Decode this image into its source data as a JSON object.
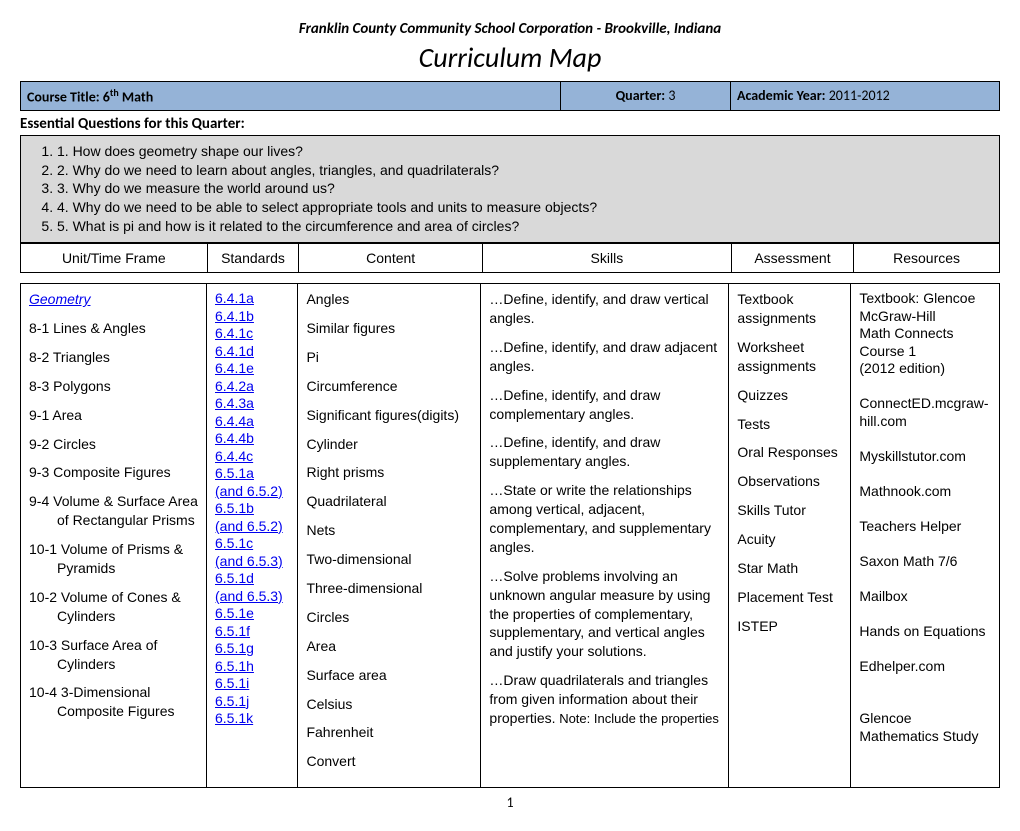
{
  "header": {
    "school": "Franklin County Community School Corporation - Brookville, Indiana",
    "title": "Curriculum Map"
  },
  "info": {
    "course_label": "Course Title:",
    "course_value": "  6",
    "course_suffix": "th",
    "course_subject": "  Math",
    "quarter_label": "Quarter:",
    "quarter_value": "  3",
    "year_label": "Academic Year:",
    "year_value": " 2011-2012"
  },
  "essential": {
    "title": "Essential Questions for this Quarter:",
    "items": [
      "1. How does geometry shape our lives?",
      "2. Why do we need to learn about angles, triangles, and quadrilaterals?",
      "3. Why do we measure the world around us?",
      "4. Why do we need to be able to select appropriate tools and units to measure objects?",
      "5.  What is pi and how is it related to the circumference and area of circles?"
    ]
  },
  "columns": {
    "c1": "Unit/Time Frame",
    "c2": "Standards",
    "c3": "Content",
    "c4": "Skills",
    "c5": "Assessment",
    "c6": "Resources"
  },
  "unit": {
    "heading": "Geometry",
    "items": [
      "8-1  Lines & Angles",
      "8-2  Triangles",
      "8-3  Polygons",
      "9-1  Area",
      "9-2  Circles",
      "9-3  Composite Figures",
      "9-4  Volume & Surface Area of Rectangular Prisms",
      "10-1  Volume of Prisms & Pyramids",
      "10-2  Volume of Cones & Cylinders",
      "10-3  Surface Area of Cylinders",
      "10-4   3-Dimensional Composite Figures"
    ]
  },
  "standards": [
    "6.4.1a",
    "6.4.1b",
    "6.4.1c",
    "6.4.1d",
    "6.4.1e",
    "6.4.2a",
    "6.4.3a",
    "6.4.4a",
    "6.4.4b",
    "6.4.4c",
    "6.5.1a",
    "(and 6.5.2)",
    "6.5.1b",
    "(and 6.5.2)",
    "6.5.1c",
    "(and 6.5.3)",
    "6.5.1d",
    "(and 6.5.3)",
    "6.5.1e",
    "6.5.1f",
    "6.5.1g",
    "6.5.1h",
    "6.5.1i",
    "6.5.1j",
    "6.5.1k"
  ],
  "content": [
    "Angles",
    "Similar figures",
    "Pi",
    "Circumference",
    "Significant figures(digits)",
    "Cylinder",
    "Right prisms",
    "Quadrilateral",
    "Nets",
    "Two-dimensional",
    "Three-dimensional",
    "Circles",
    "Area",
    "Surface area",
    "Celsius",
    "Fahrenheit",
    "Convert"
  ],
  "skills": [
    "…Define, identify, and draw vertical angles.",
    "…Define, identify, and draw adjacent angles.",
    "…Define, identify, and draw complementary angles.",
    "…Define, identify, and draw supplementary angles.",
    "…State or write the relationships among vertical, adjacent, complementary, and supplementary angles.",
    "…Solve problems involving an unknown angular measure by using the properties of complementary, supplementary, and vertical angles and justify your solutions.",
    "…Draw quadrilaterals and triangles from given information about their properties."
  ],
  "skills_note": " Note: Include the properties",
  "assessment": [
    "Textbook assignments",
    "Worksheet assignments",
    "Quizzes",
    "Tests",
    "Oral Responses",
    "Observations",
    "Skills Tutor",
    "Acuity",
    "Star Math",
    "Placement Test",
    "ISTEP"
  ],
  "resources": [
    "Textbook: Glencoe McGraw-Hill",
    "Math Connects Course 1",
    "(2012 edition)",
    "",
    "ConnectED.mcgraw-hill.com",
    "",
    "Myskillstutor.com",
    "",
    "Mathnook.com",
    "",
    "Teachers Helper",
    "",
    "Saxon Math 7/6",
    "",
    "Mailbox",
    "",
    "Hands on Equations",
    "",
    "Edhelper.com",
    "",
    "",
    "Glencoe Mathematics Study"
  ],
  "page_number": "1"
}
